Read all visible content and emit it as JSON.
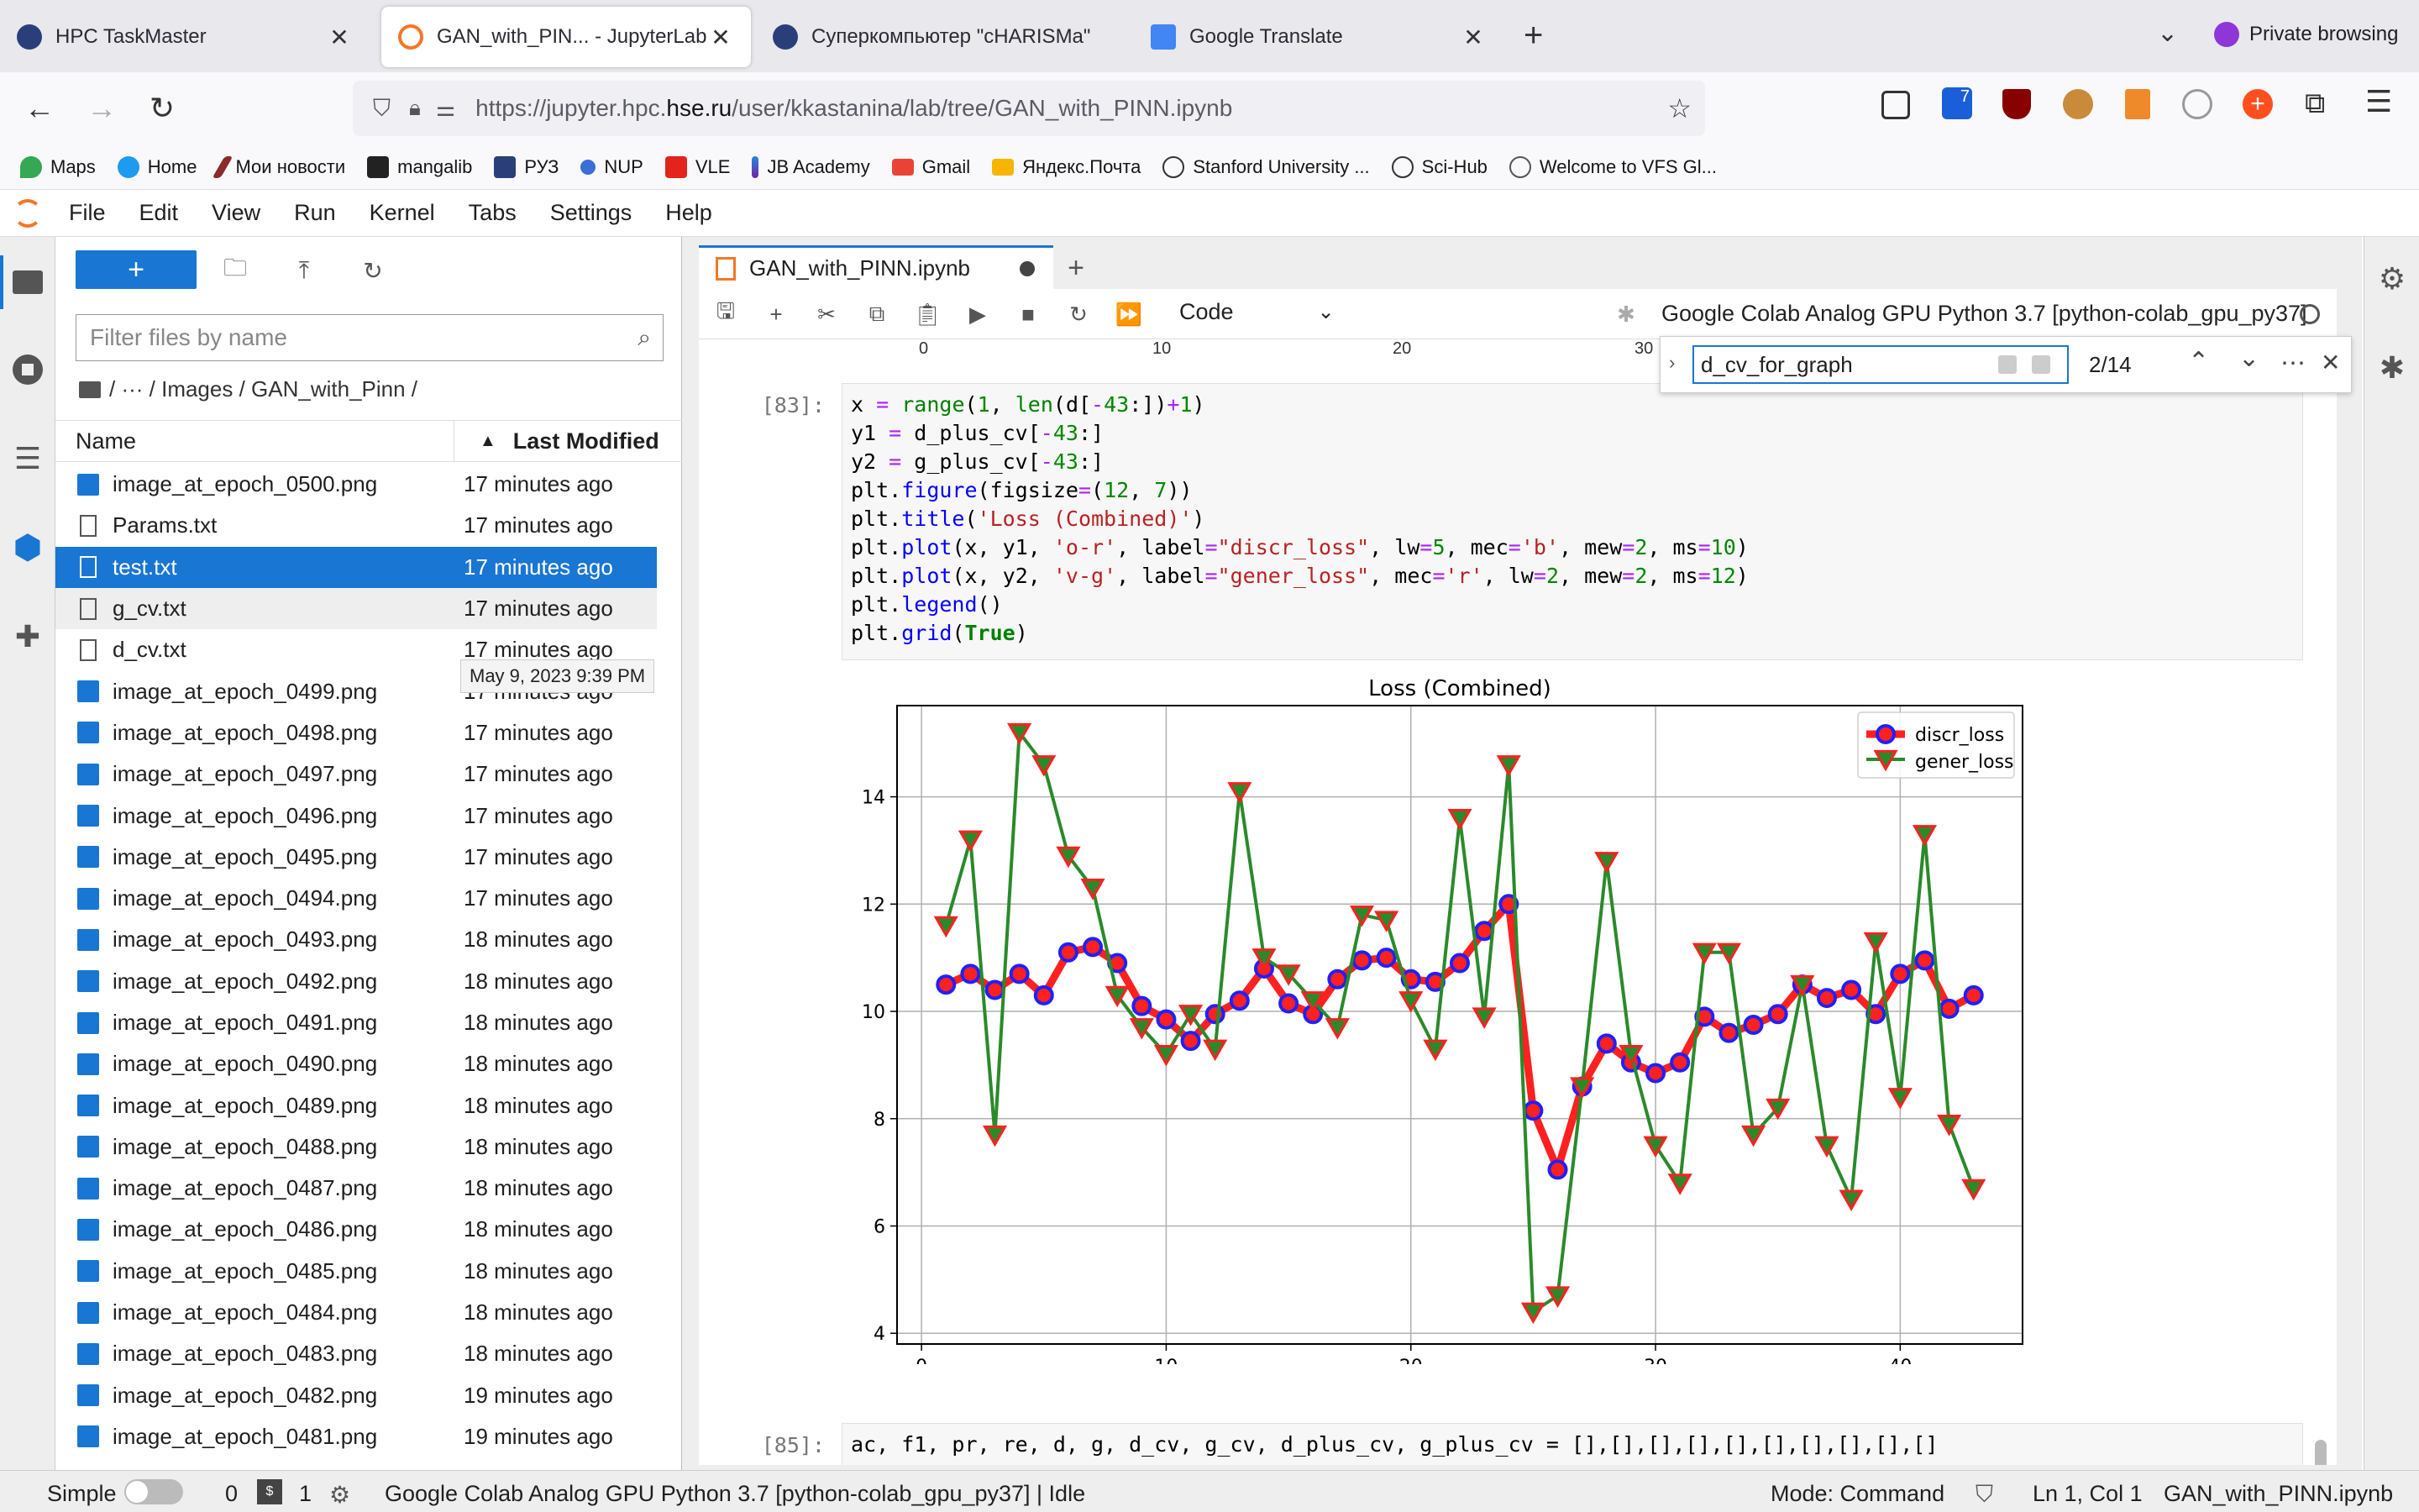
{
  "browser": {
    "tabs": [
      {
        "label": "HPC TaskMaster",
        "active": false
      },
      {
        "label": "GAN_with_PIN... - JupyterLab",
        "active": true
      },
      {
        "label": "Суперкомпьютер \"cHARISMa\"",
        "active": false
      },
      {
        "label": "Google Translate",
        "active": false
      }
    ],
    "private_label": "Private browsing",
    "url_prefix": "https://jupyter.hpc.",
    "url_domain": "hse.ru",
    "url_path": "/user/kkastanina/lab/tree/GAN_with_PINN.ipynb",
    "extension_badge": "7",
    "bookmarks": [
      "Maps",
      "Home",
      "Мои новости",
      "mangalib",
      "РУЗ",
      "NUP",
      "VLE",
      "JB Academy",
      "Gmail",
      "Яндекс.Почта",
      "Stanford University ...",
      "Sci-Hub",
      "Welcome to VFS Gl..."
    ]
  },
  "menu": [
    "File",
    "Edit",
    "View",
    "Run",
    "Kernel",
    "Tabs",
    "Settings",
    "Help"
  ],
  "filebrowser": {
    "new_label": "+",
    "filter_placeholder": "Filter files by name",
    "breadcrumb": "/ ··· / Images / GAN_with_Pinn /",
    "col_name": "Name",
    "col_modified": "Last Modified",
    "tooltip": "May 9, 2023 9:39 PM",
    "files": [
      {
        "name": "image_at_epoch_0500.png",
        "modified": "17 minutes ago",
        "type": "image"
      },
      {
        "name": "Params.txt",
        "modified": "17 minutes ago",
        "type": "text"
      },
      {
        "name": "test.txt",
        "modified": "17 minutes ago",
        "type": "text",
        "selected": true
      },
      {
        "name": "g_cv.txt",
        "modified": "17 minutes ago",
        "type": "text",
        "hover": true
      },
      {
        "name": "d_cv.txt",
        "modified": "17 minutes ago",
        "type": "text"
      },
      {
        "name": "image_at_epoch_0499.png",
        "modified": "17 minutes ago",
        "type": "image"
      },
      {
        "name": "image_at_epoch_0498.png",
        "modified": "17 minutes ago",
        "type": "image"
      },
      {
        "name": "image_at_epoch_0497.png",
        "modified": "17 minutes ago",
        "type": "image"
      },
      {
        "name": "image_at_epoch_0496.png",
        "modified": "17 minutes ago",
        "type": "image"
      },
      {
        "name": "image_at_epoch_0495.png",
        "modified": "17 minutes ago",
        "type": "image"
      },
      {
        "name": "image_at_epoch_0494.png",
        "modified": "17 minutes ago",
        "type": "image"
      },
      {
        "name": "image_at_epoch_0493.png",
        "modified": "18 minutes ago",
        "type": "image"
      },
      {
        "name": "image_at_epoch_0492.png",
        "modified": "18 minutes ago",
        "type": "image"
      },
      {
        "name": "image_at_epoch_0491.png",
        "modified": "18 minutes ago",
        "type": "image"
      },
      {
        "name": "image_at_epoch_0490.png",
        "modified": "18 minutes ago",
        "type": "image"
      },
      {
        "name": "image_at_epoch_0489.png",
        "modified": "18 minutes ago",
        "type": "image"
      },
      {
        "name": "image_at_epoch_0488.png",
        "modified": "18 minutes ago",
        "type": "image"
      },
      {
        "name": "image_at_epoch_0487.png",
        "modified": "18 minutes ago",
        "type": "image"
      },
      {
        "name": "image_at_epoch_0486.png",
        "modified": "18 minutes ago",
        "type": "image"
      },
      {
        "name": "image_at_epoch_0485.png",
        "modified": "18 minutes ago",
        "type": "image"
      },
      {
        "name": "image_at_epoch_0484.png",
        "modified": "18 minutes ago",
        "type": "image"
      },
      {
        "name": "image_at_epoch_0483.png",
        "modified": "18 minutes ago",
        "type": "image"
      },
      {
        "name": "image_at_epoch_0482.png",
        "modified": "19 minutes ago",
        "type": "image"
      },
      {
        "name": "image_at_epoch_0481.png",
        "modified": "19 minutes ago",
        "type": "image"
      }
    ]
  },
  "notebook": {
    "tab_label": "GAN_with_PINN.ipynb",
    "cell_type": "Code",
    "kernel": "Google Colab Analog GPU Python 3.7 [python-colab_gpu_py37]",
    "prev_ticks": [
      "0",
      "10",
      "20",
      "30"
    ],
    "cell83_prompt": "[83]:",
    "cell85_prompt": "[85]:",
    "cell85_code": "ac, f1, pr, re, d, g, d_cv, g_cv, d_plus_cv, g_plus_cv = [],[],[],[],[],[],[],[],[],[]"
  },
  "find": {
    "query": "d_cv_for_graph",
    "count": "2/14"
  },
  "status": {
    "mode_label": "Simple",
    "n1": "0",
    "n2": "1",
    "kernel_status": "Google Colab Analog GPU Python 3.7 [python-colab_gpu_py37] | Idle",
    "mode": "Mode: Command",
    "position": "Ln 1, Col 1",
    "file": "GAN_with_PINN.ipynb"
  },
  "chart_data": {
    "type": "line",
    "title": "Loss (Combined)",
    "xlim": [
      -1,
      45
    ],
    "ylim": [
      3.8,
      15.7
    ],
    "xticks": [
      0,
      10,
      20,
      30,
      40
    ],
    "yticks": [
      4,
      6,
      8,
      10,
      12,
      14
    ],
    "grid": true,
    "legend_position": "top-right",
    "x": [
      1,
      2,
      3,
      4,
      5,
      6,
      7,
      8,
      9,
      10,
      11,
      12,
      13,
      14,
      15,
      16,
      17,
      18,
      19,
      20,
      21,
      22,
      23,
      24,
      25,
      26,
      27,
      28,
      29,
      30,
      31,
      32,
      33,
      34,
      35,
      36,
      37,
      38,
      39,
      40,
      41,
      42,
      43
    ],
    "series": [
      {
        "name": "discr_loss",
        "color": "#ff2020",
        "marker": "circle",
        "marker_edge": "#2020ff",
        "values": [
          10.5,
          10.7,
          10.4,
          10.7,
          10.3,
          11.1,
          11.2,
          10.9,
          10.1,
          9.85,
          9.45,
          9.95,
          10.2,
          10.8,
          10.15,
          9.95,
          10.6,
          10.95,
          11.0,
          10.6,
          10.55,
          10.9,
          11.5,
          12.0,
          8.15,
          7.05,
          8.6,
          9.4,
          9.05,
          8.85,
          9.05,
          9.9,
          9.6,
          9.75,
          9.95,
          10.5,
          10.25,
          10.4,
          9.95,
          10.7,
          10.95,
          10.05,
          10.3
        ]
      },
      {
        "name": "gener_loss",
        "color": "#2a8a2a",
        "marker": "triangle-down",
        "marker_edge": "#ff2020",
        "values": [
          11.6,
          13.2,
          7.7,
          15.2,
          14.6,
          12.9,
          12.3,
          10.3,
          9.7,
          9.2,
          9.95,
          9.3,
          14.1,
          11.0,
          10.7,
          10.2,
          9.7,
          11.8,
          11.7,
          10.2,
          9.3,
          13.6,
          9.9,
          14.6,
          4.4,
          4.7,
          8.6,
          12.8,
          9.2,
          7.5,
          6.8,
          11.1,
          11.1,
          7.7,
          8.2,
          10.5,
          7.5,
          6.5,
          11.3,
          8.4,
          13.3,
          7.9,
          6.7
        ]
      }
    ]
  }
}
